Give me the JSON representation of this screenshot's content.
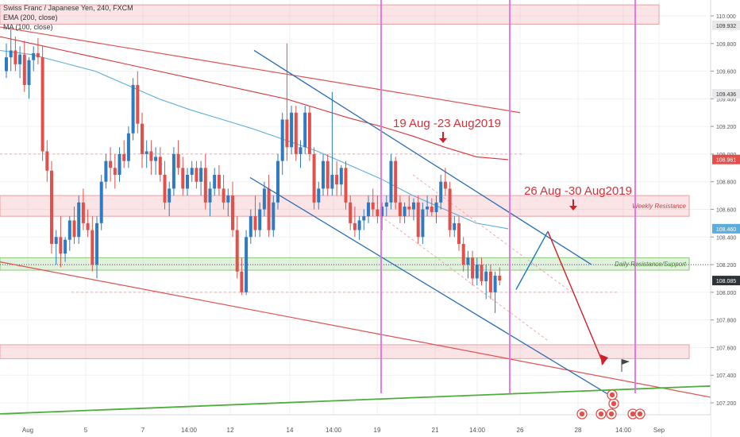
{
  "legend": {
    "symbol_line": "Swiss Franc / Japanese Yen, 240, FXCM",
    "ema_line": "EMA (200, close)",
    "ma_line": "MA (100, close)"
  },
  "colors": {
    "up": "#2e7bbf",
    "down": "#e2504c",
    "ema": "#d9343b",
    "ma": "#5aaedc",
    "trend_blue": "#2a6db3",
    "trend_red": "#e05252",
    "trend_green": "#4fae3b",
    "vline": "#e66ce6",
    "arrow_red": "#d0202a",
    "arrow_blue": "#1c78c4"
  },
  "chart_data": {
    "type": "candlestick",
    "symbol": "Swiss Franc / Japanese Yen, 240, FXCM",
    "ylim": [
      107.08,
      110.12
    ],
    "y_ticks": [
      110.0,
      109.8,
      109.6,
      109.4,
      109.2,
      109.0,
      108.8,
      108.6,
      108.4,
      108.2,
      108.0,
      107.8,
      107.6,
      107.4,
      107.2
    ],
    "x_ticks": [
      "Aug",
      "5",
      "7",
      "14:00",
      "12",
      "14",
      "14:00",
      "19",
      "21",
      "14:00",
      "26",
      "28",
      "14:00",
      "Sep"
    ],
    "price_labels": [
      {
        "text": "109.932",
        "value": 109.932,
        "style": "light"
      },
      {
        "text": "109.436",
        "value": 109.436,
        "style": "light"
      },
      {
        "text": "108.961",
        "value": 108.961,
        "style": "red"
      },
      {
        "text": "108.460",
        "value": 108.46,
        "style": "blue"
      },
      {
        "text": "108.085",
        "value": 108.085,
        "style": "dark"
      }
    ],
    "candles": [
      [
        109.6,
        109.8,
        109.55,
        109.7
      ],
      [
        109.7,
        109.9,
        109.6,
        109.75
      ],
      [
        109.75,
        109.85,
        109.6,
        109.65
      ],
      [
        109.65,
        109.78,
        109.55,
        109.72
      ],
      [
        109.72,
        109.82,
        109.45,
        109.5
      ],
      [
        109.5,
        109.7,
        109.4,
        109.68
      ],
      [
        109.68,
        109.78,
        109.6,
        109.73
      ],
      [
        109.73,
        109.84,
        109.65,
        109.7
      ],
      [
        109.7,
        109.78,
        108.95,
        109.02
      ],
      [
        109.02,
        109.1,
        108.8,
        108.88
      ],
      [
        108.88,
        108.95,
        108.28,
        108.35
      ],
      [
        108.35,
        108.45,
        108.2,
        108.4
      ],
      [
        108.4,
        108.55,
        108.18,
        108.28
      ],
      [
        108.28,
        108.4,
        108.22,
        108.38
      ],
      [
        108.38,
        108.55,
        108.3,
        108.52
      ],
      [
        108.52,
        108.62,
        108.35,
        108.4
      ],
      [
        108.4,
        108.7,
        108.35,
        108.65
      ],
      [
        108.65,
        108.75,
        108.45,
        108.5
      ],
      [
        108.5,
        108.6,
        108.4,
        108.45
      ],
      [
        108.45,
        108.55,
        108.15,
        108.2
      ],
      [
        108.2,
        108.55,
        108.1,
        108.5
      ],
      [
        108.5,
        108.85,
        108.45,
        108.8
      ],
      [
        108.8,
        109.0,
        108.75,
        108.95
      ],
      [
        108.95,
        109.05,
        108.8,
        108.9
      ],
      [
        108.9,
        109.0,
        108.75,
        108.85
      ],
      [
        108.85,
        109.05,
        108.8,
        109.0
      ],
      [
        109.0,
        109.1,
        108.9,
        108.95
      ],
      [
        108.95,
        109.2,
        108.9,
        109.15
      ],
      [
        109.15,
        109.55,
        109.1,
        109.5
      ],
      [
        109.5,
        109.6,
        109.15,
        109.22
      ],
      [
        109.22,
        109.3,
        108.9,
        109.0
      ],
      [
        109.0,
        109.1,
        108.9,
        109.02
      ],
      [
        109.02,
        109.1,
        108.85,
        108.95
      ],
      [
        108.95,
        109.05,
        108.85,
        108.98
      ],
      [
        108.98,
        109.05,
        108.8,
        108.85
      ],
      [
        108.85,
        108.95,
        108.6,
        108.65
      ],
      [
        108.65,
        108.8,
        108.55,
        108.75
      ],
      [
        108.75,
        109.05,
        108.7,
        109.0
      ],
      [
        109.0,
        109.1,
        108.85,
        108.9
      ],
      [
        108.9,
        108.98,
        108.7,
        108.75
      ],
      [
        108.75,
        108.9,
        108.7,
        108.85
      ],
      [
        108.85,
        108.95,
        108.8,
        108.9
      ],
      [
        108.9,
        108.95,
        108.75,
        108.8
      ],
      [
        108.8,
        108.95,
        108.7,
        108.9
      ],
      [
        108.9,
        109.0,
        108.6,
        108.65
      ],
      [
        108.65,
        108.8,
        108.55,
        108.75
      ],
      [
        108.75,
        108.9,
        108.7,
        108.85
      ],
      [
        108.85,
        108.92,
        108.7,
        108.75
      ],
      [
        108.75,
        108.85,
        108.6,
        108.65
      ],
      [
        108.65,
        108.75,
        108.55,
        108.7
      ],
      [
        108.7,
        108.8,
        108.4,
        108.45
      ],
      [
        108.45,
        108.55,
        108.1,
        108.15
      ],
      [
        108.15,
        108.25,
        107.98,
        108.0
      ],
      [
        108.0,
        108.45,
        107.98,
        108.4
      ],
      [
        108.4,
        108.6,
        108.35,
        108.55
      ],
      [
        108.55,
        108.7,
        108.4,
        108.45
      ],
      [
        108.45,
        108.65,
        108.4,
        108.6
      ],
      [
        108.6,
        108.8,
        108.55,
        108.75
      ],
      [
        108.75,
        108.85,
        108.4,
        108.45
      ],
      [
        108.45,
        108.7,
        108.4,
        108.65
      ],
      [
        108.65,
        109.0,
        108.6,
        108.95
      ],
      [
        108.95,
        109.3,
        108.85,
        109.25
      ],
      [
        109.25,
        109.8,
        108.95,
        109.05
      ],
      [
        109.05,
        109.35,
        109.0,
        109.3
      ],
      [
        109.3,
        109.35,
        108.95,
        109.0
      ],
      [
        109.0,
        109.1,
        108.9,
        109.05
      ],
      [
        109.05,
        109.35,
        109.0,
        109.3
      ],
      [
        109.3,
        109.35,
        108.95,
        109.0
      ],
      [
        109.0,
        109.05,
        108.6,
        108.65
      ],
      [
        108.65,
        108.8,
        108.6,
        108.75
      ],
      [
        108.75,
        109.0,
        108.7,
        108.95
      ],
      [
        108.95,
        109.0,
        108.7,
        108.75
      ],
      [
        108.75,
        109.45,
        108.7,
        108.85
      ],
      [
        108.85,
        108.95,
        108.7,
        108.78
      ],
      [
        108.78,
        108.92,
        108.7,
        108.9
      ],
      [
        108.9,
        108.95,
        108.6,
        108.65
      ],
      [
        108.65,
        108.7,
        108.45,
        108.5
      ],
      [
        108.5,
        108.62,
        108.4,
        108.45
      ],
      [
        108.45,
        108.55,
        108.38,
        108.52
      ],
      [
        108.52,
        108.6,
        108.45,
        108.55
      ],
      [
        108.55,
        108.7,
        108.5,
        108.65
      ],
      [
        108.65,
        108.75,
        108.55,
        108.6
      ],
      [
        108.6,
        108.7,
        108.5,
        108.55
      ],
      [
        108.55,
        108.65,
        108.45,
        108.62
      ],
      [
        108.62,
        108.7,
        108.55,
        108.65
      ],
      [
        108.65,
        109.0,
        108.6,
        108.95
      ],
      [
        108.95,
        108.98,
        108.6,
        108.65
      ],
      [
        108.65,
        108.7,
        108.5,
        108.55
      ],
      [
        108.55,
        108.65,
        108.5,
        108.62
      ],
      [
        108.62,
        108.7,
        108.55,
        108.6
      ],
      [
        108.6,
        108.68,
        108.52,
        108.65
      ],
      [
        108.65,
        108.7,
        108.35,
        108.4
      ],
      [
        108.4,
        108.65,
        108.35,
        108.6
      ],
      [
        108.6,
        108.7,
        108.55,
        108.62
      ],
      [
        108.62,
        108.68,
        108.55,
        108.58
      ],
      [
        108.58,
        108.7,
        108.5,
        108.65
      ],
      [
        108.65,
        108.85,
        108.6,
        108.8
      ],
      [
        108.8,
        108.9,
        108.7,
        108.75
      ],
      [
        108.75,
        108.8,
        108.4,
        108.45
      ],
      [
        108.45,
        108.55,
        108.4,
        108.5
      ],
      [
        108.5,
        108.55,
        108.3,
        108.35
      ],
      [
        108.35,
        108.4,
        108.15,
        108.2
      ],
      [
        108.2,
        108.3,
        108.1,
        108.25
      ],
      [
        108.25,
        108.3,
        108.05,
        108.1
      ],
      [
        108.1,
        108.25,
        108.05,
        108.2
      ],
      [
        108.2,
        108.25,
        108.05,
        108.08
      ],
      [
        108.08,
        108.2,
        107.95,
        108.15
      ],
      [
        108.15,
        108.2,
        107.95,
        108.0
      ],
      [
        108.0,
        108.15,
        107.85,
        108.12
      ],
      [
        108.12,
        108.18,
        108.05,
        108.085
      ]
    ],
    "series": [
      {
        "name": "EMA (200, close)",
        "start": 0,
        "values": [
          109.85,
          109.8,
          109.75,
          109.7,
          109.65,
          109.6,
          109.55,
          109.5,
          109.45,
          109.4,
          109.33,
          109.26,
          109.2,
          109.13,
          109.05,
          108.98,
          108.96
        ]
      },
      {
        "name": "MA (100, close)",
        "start": 0,
        "values": [
          109.75,
          109.72,
          109.66,
          109.6,
          109.5,
          109.4,
          109.32,
          109.25,
          109.18,
          109.1,
          109.02,
          108.92,
          108.82,
          108.7,
          108.6,
          108.5,
          108.46
        ]
      }
    ],
    "zones": [
      {
        "label": "",
        "from": 110.08,
        "to": 109.94,
        "color": "red"
      },
      {
        "label": "Weekly Resistance",
        "from": 108.7,
        "to": 108.55,
        "color": "red"
      },
      {
        "label": "Daily Resistance/Support",
        "from": 108.25,
        "to": 108.16,
        "color": "green"
      },
      {
        "label": "",
        "from": 107.62,
        "to": 107.52,
        "color": "red"
      }
    ],
    "annotations": [
      {
        "text": "19 Aug -23 Aug2019"
      },
      {
        "text": "26 Aug -30 Aug2019"
      }
    ]
  }
}
